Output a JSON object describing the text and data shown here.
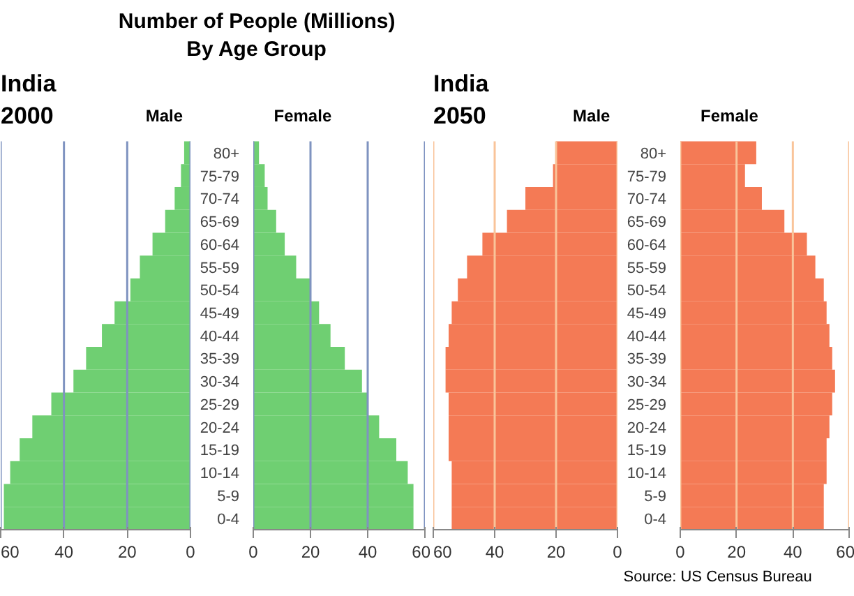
{
  "chart_data": [
    {
      "type": "other",
      "title": "Number of People (Millions) By Age Group"
    },
    {
      "type": "bar",
      "orientation": "horizontal",
      "title": "India 2000",
      "grid": "x",
      "tick_labels": "x",
      "categories": [
        "80+",
        "75-79",
        "70-74",
        "65-69",
        "60-64",
        "55-59",
        "50-54",
        "45-49",
        "40-44",
        "35-39",
        "30-34",
        "25-29",
        "20-24",
        "15-19",
        "10-14",
        "5-9",
        "0-4"
      ],
      "series": [
        {
          "name": "Male",
          "color": "#6fcf72",
          "values": [
            2,
            3,
            5,
            8,
            12,
            16,
            19,
            24,
            28,
            33,
            37,
            44,
            50,
            54,
            57,
            59,
            59
          ]
        }
      ],
      "xlim": [
        60,
        0
      ],
      "xticks": [
        60,
        40,
        20,
        0
      ]
    },
    {
      "type": "bar",
      "orientation": "horizontal",
      "grid": "x",
      "categories": [
        "80+",
        "75-79",
        "70-74",
        "65-69",
        "60-64",
        "55-59",
        "50-54",
        "45-49",
        "40-44",
        "35-39",
        "30-34",
        "25-29",
        "20-24",
        "15-19",
        "10-14",
        "5-9",
        "0-4"
      ],
      "series": [
        {
          "name": "Female",
          "color": "#6fcf72",
          "values": [
            2,
            4,
            5,
            8,
            11,
            15,
            20,
            23,
            27,
            32,
            38,
            40,
            44,
            50,
            54,
            56,
            56
          ]
        }
      ],
      "xlim": [
        0,
        60
      ],
      "xticks": [
        0,
        20,
        40,
        60
      ]
    },
    {
      "type": "bar",
      "orientation": "horizontal",
      "title": "India 2050",
      "grid": "x",
      "tick_labels": "x",
      "categories": [
        "80+",
        "75-79",
        "70-74",
        "65-69",
        "60-64",
        "55-59",
        "50-54",
        "45-49",
        "40-44",
        "35-39",
        "30-34",
        "25-29",
        "20-24",
        "15-19",
        "10-14",
        "5-9",
        "0-4"
      ],
      "series": [
        {
          "name": "Male",
          "color": "#f47a55",
          "values": [
            20,
            21,
            30,
            36,
            44,
            49,
            52,
            54,
            55,
            56,
            56,
            55,
            55,
            55,
            54,
            54,
            54
          ]
        }
      ],
      "xlim": [
        60,
        0
      ],
      "xticks": [
        60,
        40,
        20,
        0
      ]
    },
    {
      "type": "bar",
      "orientation": "horizontal",
      "grid": "x",
      "categories": [
        "80+",
        "75-79",
        "70-74",
        "65-69",
        "60-64",
        "55-59",
        "50-54",
        "45-49",
        "40-44",
        "35-39",
        "30-34",
        "25-29",
        "20-24",
        "15-19",
        "10-14",
        "5-9",
        "0-4"
      ],
      "series": [
        {
          "name": "Female",
          "color": "#f47a55",
          "values": [
            27,
            23,
            29,
            37,
            45,
            48,
            51,
            52,
            53,
            54,
            55,
            54,
            53,
            52,
            52,
            51,
            51
          ]
        }
      ],
      "xlim": [
        0,
        60
      ],
      "xticks": [
        0,
        20,
        40,
        60
      ],
      "annotations": [
        "Source: US Census Bureau"
      ]
    }
  ]
}
